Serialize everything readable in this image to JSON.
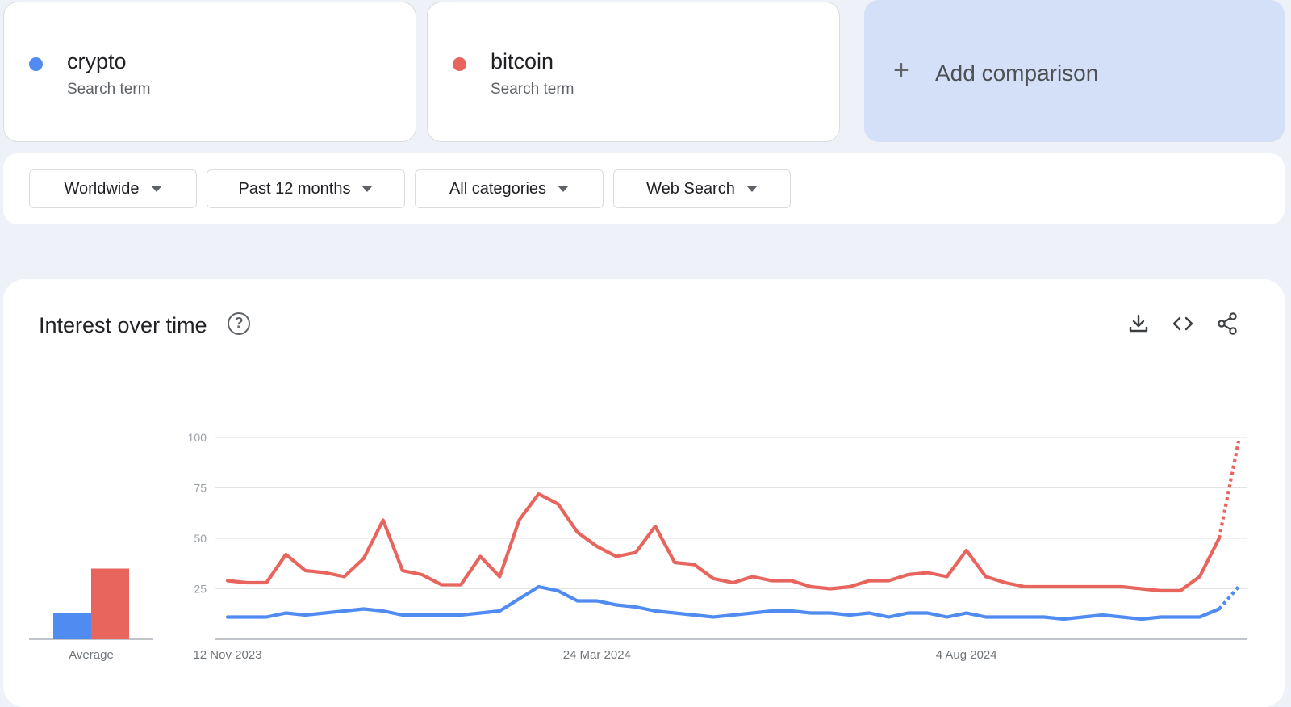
{
  "terms": [
    {
      "name": "crypto",
      "subtitle": "Search term",
      "color": "#4f8bf0"
    },
    {
      "name": "bitcoin",
      "subtitle": "Search term",
      "color": "#e8655e"
    }
  ],
  "add_comparison": {
    "label": "Add comparison",
    "icon": "plus-icon"
  },
  "filters": {
    "region": "Worldwide",
    "timeframe": "Past 12 months",
    "category": "All categories",
    "property": "Web Search"
  },
  "chart_card": {
    "title": "Interest over time",
    "icons": [
      "help-icon",
      "download-icon",
      "embed-code-icon",
      "share-icon"
    ]
  },
  "chart_data": {
    "type": "line",
    "y_ticks": [
      "100",
      "75",
      "50",
      "25"
    ],
    "ylim": [
      0,
      100
    ],
    "x_tick_labels": [
      "12 Nov 2023",
      "24 Mar 2024",
      "4 Aug 2024"
    ],
    "x_tick_indices": [
      0,
      19,
      38
    ],
    "grid": true,
    "average": {
      "label": "Average",
      "values": [
        {
          "name": "crypto",
          "value": 13
        },
        {
          "name": "bitcoin",
          "value": 35
        }
      ]
    },
    "partial_from_index": 51,
    "series": [
      {
        "name": "crypto",
        "color": "#4f8bf0",
        "values": [
          11,
          11,
          11,
          13,
          12,
          13,
          14,
          15,
          14,
          12,
          12,
          12,
          12,
          13,
          14,
          20,
          26,
          24,
          19,
          19,
          17,
          16,
          14,
          13,
          12,
          11,
          12,
          13,
          14,
          14,
          13,
          13,
          12,
          13,
          11,
          13,
          13,
          11,
          13,
          11,
          11,
          11,
          11,
          10,
          11,
          12,
          11,
          10,
          11,
          11,
          11,
          15,
          26
        ]
      },
      {
        "name": "bitcoin",
        "color": "#e8655e",
        "values": [
          29,
          28,
          28,
          42,
          34,
          33,
          31,
          40,
          59,
          34,
          32,
          27,
          27,
          41,
          31,
          59,
          72,
          67,
          53,
          46,
          41,
          43,
          56,
          38,
          37,
          30,
          28,
          31,
          29,
          29,
          26,
          25,
          26,
          29,
          29,
          32,
          33,
          31,
          44,
          31,
          28,
          26,
          26,
          26,
          26,
          26,
          26,
          25,
          24,
          24,
          31,
          50,
          98
        ]
      }
    ]
  }
}
